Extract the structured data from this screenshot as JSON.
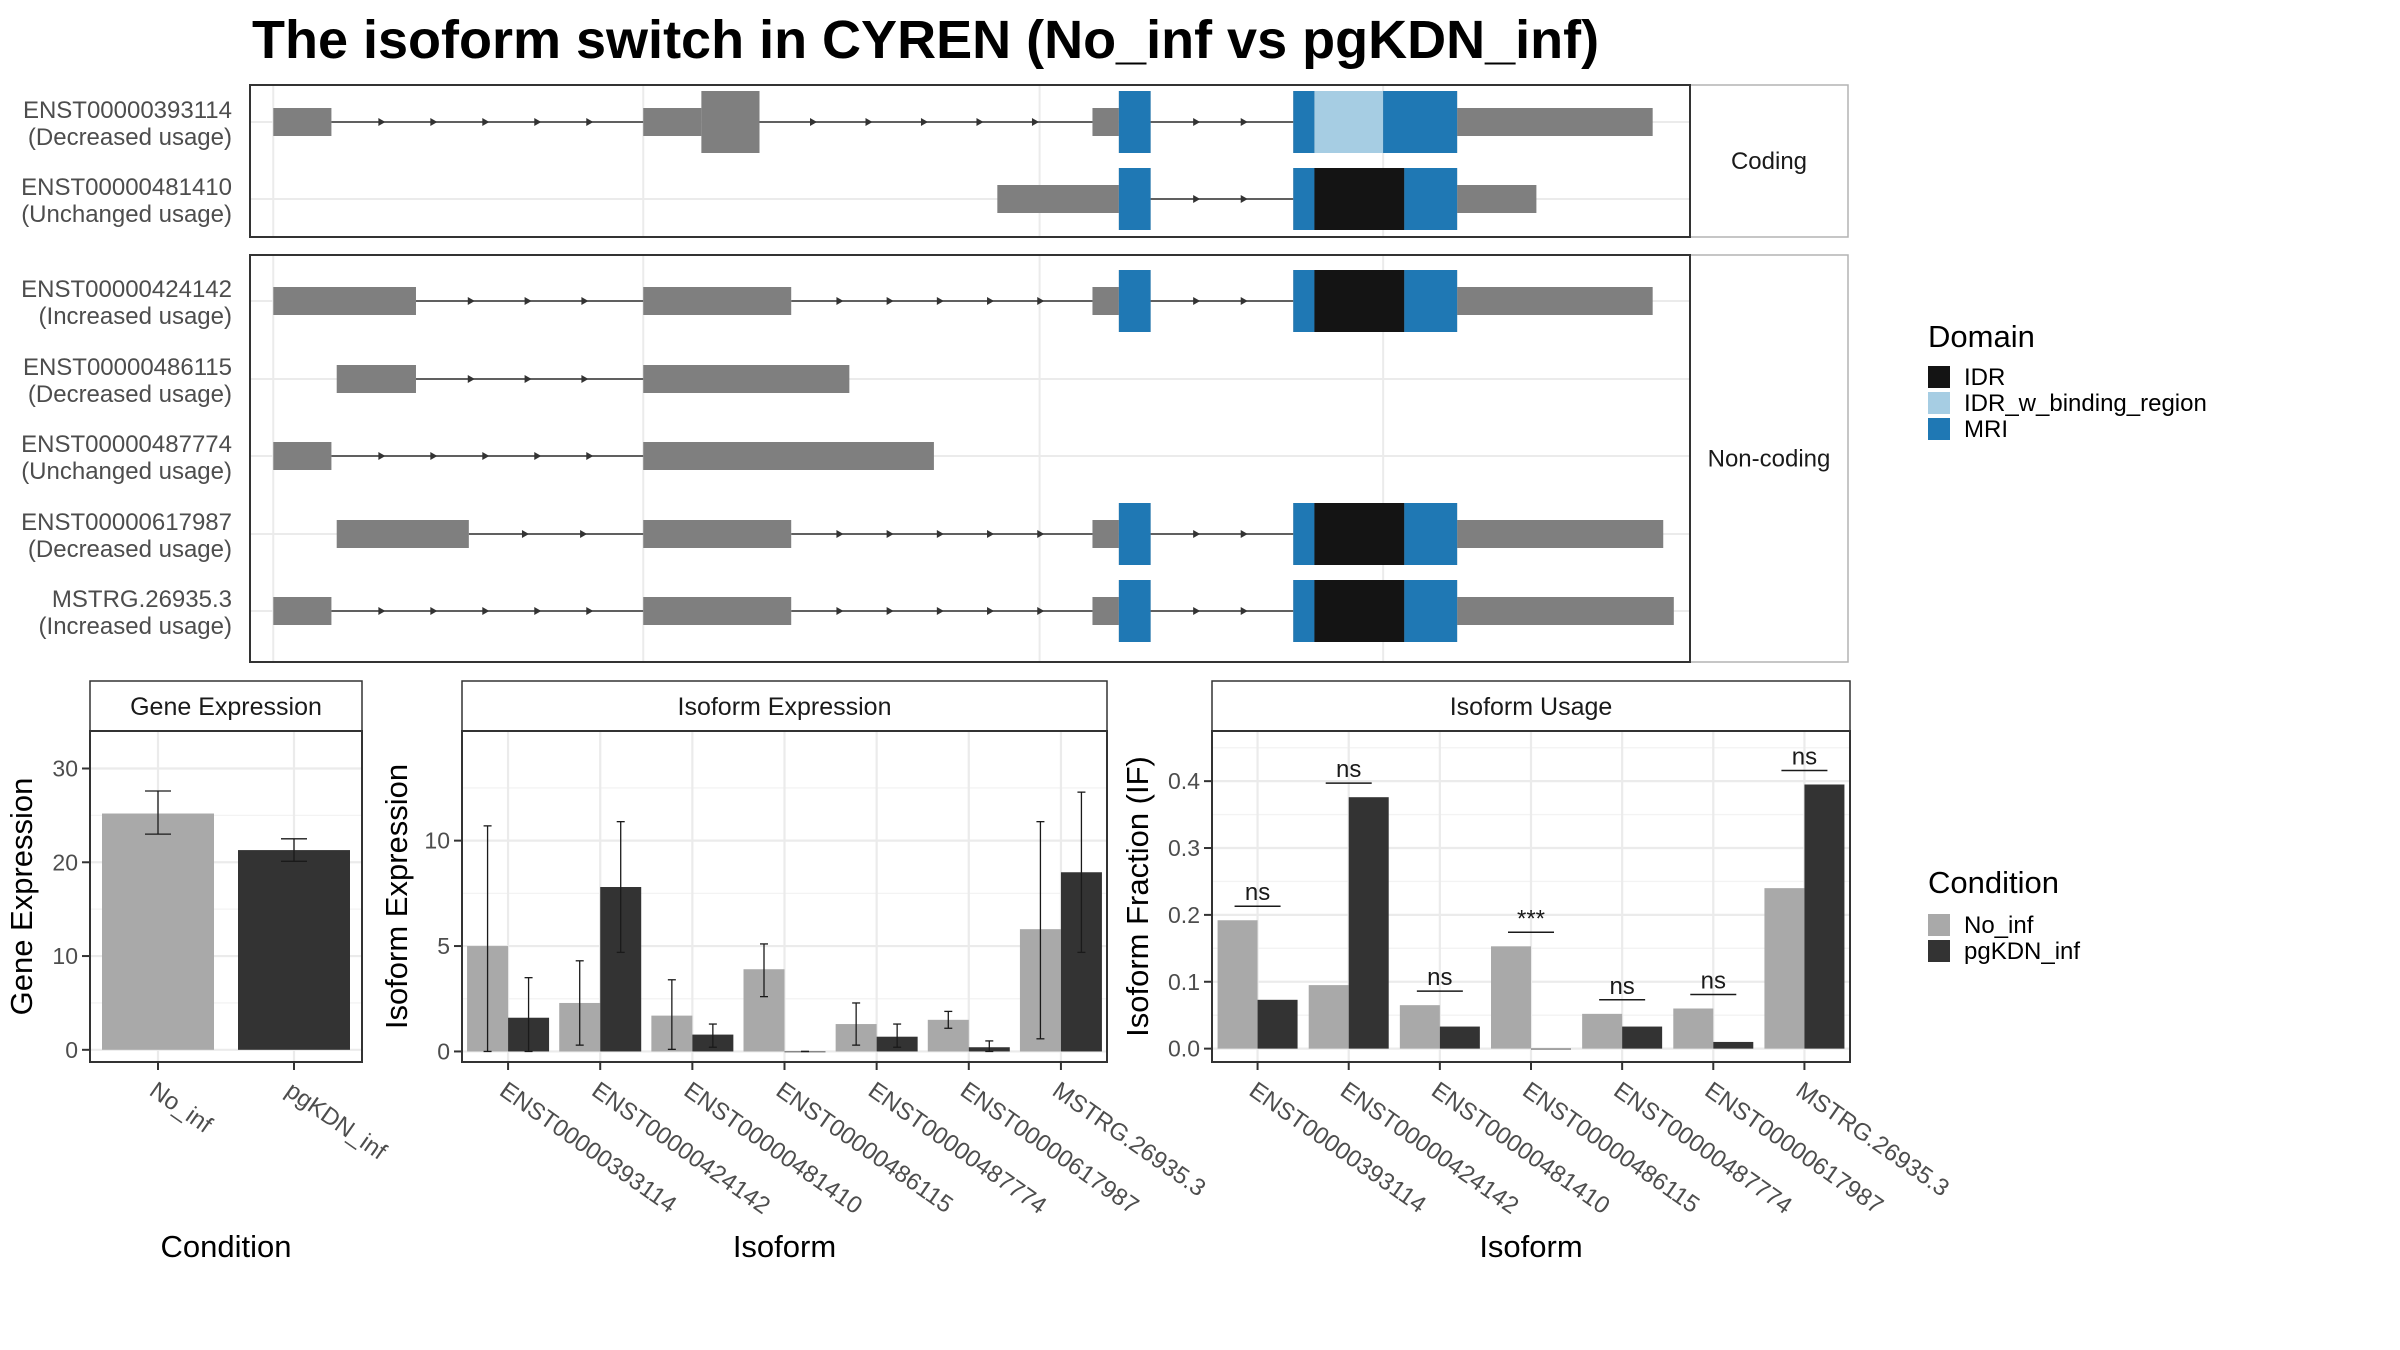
{
  "title": "The isoform switch in CYREN (No_inf vs pgKDN_inf)",
  "colors": {
    "exon": "#7f7f7f",
    "IDR": "#141414",
    "IDR_w_binding_region": "#a6cde3",
    "MRI": "#1f78b4",
    "No_inf": "#a9a9a9",
    "pgKDN_inf": "#333333"
  },
  "legend_domain": {
    "title": "Domain",
    "items": [
      {
        "key": "IDR",
        "label": "IDR"
      },
      {
        "key": "IDR_w_binding_region",
        "label": "IDR_w_binding_region"
      },
      {
        "key": "MRI",
        "label": "MRI"
      }
    ]
  },
  "legend_condition": {
    "title": "Condition",
    "items": [
      {
        "key": "No_inf",
        "label": "No_inf"
      },
      {
        "key": "pgKDN_inf",
        "label": "pgKDN_inf"
      }
    ]
  },
  "structure": {
    "x_range": [
      0,
      1000
    ],
    "groups": [
      {
        "label": "Coding",
        "isoforms": [
          {
            "id": "ENST00000393114",
            "usage": "(Decreased usage)",
            "exons": [
              [
                5,
                60
              ],
              [
                355,
                410
              ],
              [
                410,
                465
              ],
              [
                780,
                805
              ],
              [
                805,
                835
              ],
              [
                970,
                990
              ],
              [
                990,
                1055
              ],
              [
                1055,
                1110
              ],
              [
                1110,
                1125
              ],
              [
                1125,
                1310
              ]
            ],
            "thick": [
              [
                410,
                465
              ],
              [
                805,
                835
              ],
              [
                970,
                1125
              ]
            ],
            "domains": [
              {
                "s": 805,
                "e": 835,
                "d": "MRI"
              },
              {
                "s": 970,
                "e": 990,
                "d": "MRI"
              },
              {
                "s": 990,
                "e": 1055,
                "d": "IDR_w_binding_region"
              },
              {
                "s": 1055,
                "e": 1125,
                "d": "MRI"
              }
            ]
          },
          {
            "id": "ENST00000481410",
            "usage": "(Unchanged usage)",
            "exons": [
              [
                690,
                805
              ],
              [
                805,
                835
              ],
              [
                970,
                1125
              ],
              [
                1125,
                1200
              ]
            ],
            "thick": [
              [
                805,
                835
              ],
              [
                970,
                1125
              ]
            ],
            "domains": [
              {
                "s": 805,
                "e": 835,
                "d": "MRI"
              },
              {
                "s": 970,
                "e": 990,
                "d": "MRI"
              },
              {
                "s": 990,
                "e": 1075,
                "d": "IDR"
              },
              {
                "s": 1075,
                "e": 1125,
                "d": "MRI"
              }
            ]
          }
        ]
      },
      {
        "label": "Non-coding",
        "isoforms": [
          {
            "id": "ENST00000424142",
            "usage": "(Increased usage)",
            "exons": [
              [
                5,
                140
              ],
              [
                355,
                495
              ],
              [
                780,
                805
              ],
              [
                805,
                835
              ],
              [
                970,
                1125
              ],
              [
                1125,
                1310
              ]
            ],
            "thick": [
              [
                805,
                835
              ],
              [
                970,
                1125
              ]
            ],
            "domains": [
              {
                "s": 805,
                "e": 835,
                "d": "MRI"
              },
              {
                "s": 970,
                "e": 990,
                "d": "MRI"
              },
              {
                "s": 990,
                "e": 1075,
                "d": "IDR"
              },
              {
                "s": 1075,
                "e": 1125,
                "d": "MRI"
              }
            ]
          },
          {
            "id": "ENST00000486115",
            "usage": "(Decreased usage)",
            "exons": [
              [
                65,
                140
              ],
              [
                355,
                550
              ]
            ],
            "thick": [],
            "domains": []
          },
          {
            "id": "ENST00000487774",
            "usage": "(Unchanged usage)",
            "exons": [
              [
                5,
                60
              ],
              [
                355,
                630
              ]
            ],
            "thick": [],
            "domains": []
          },
          {
            "id": "ENST00000617987",
            "usage": "(Decreased usage)",
            "exons": [
              [
                65,
                190
              ],
              [
                355,
                495
              ],
              [
                780,
                805
              ],
              [
                805,
                835
              ],
              [
                970,
                1125
              ],
              [
                1125,
                1320
              ]
            ],
            "thick": [
              [
                805,
                835
              ],
              [
                970,
                1125
              ]
            ],
            "domains": [
              {
                "s": 805,
                "e": 835,
                "d": "MRI"
              },
              {
                "s": 970,
                "e": 990,
                "d": "MRI"
              },
              {
                "s": 990,
                "e": 1075,
                "d": "IDR"
              },
              {
                "s": 1075,
                "e": 1125,
                "d": "MRI"
              }
            ]
          },
          {
            "id": "MSTRG.26935.3",
            "usage": "(Increased usage)",
            "exons": [
              [
                5,
                60
              ],
              [
                355,
                495
              ],
              [
                780,
                805
              ],
              [
                805,
                835
              ],
              [
                970,
                1125
              ],
              [
                1125,
                1330
              ]
            ],
            "thick": [
              [
                805,
                835
              ],
              [
                970,
                1125
              ]
            ],
            "domains": [
              {
                "s": 805,
                "e": 835,
                "d": "MRI"
              },
              {
                "s": 970,
                "e": 990,
                "d": "MRI"
              },
              {
                "s": 990,
                "e": 1075,
                "d": "IDR"
              },
              {
                "s": 1075,
                "e": 1125,
                "d": "MRI"
              }
            ]
          }
        ]
      }
    ]
  },
  "chart_data": [
    {
      "type": "bar",
      "title": "Gene Expression",
      "xlabel": "Condition",
      "ylabel": "Gene Expression",
      "ylim": [
        -1.3,
        34
      ],
      "yticks": [
        0,
        10,
        20,
        30
      ],
      "categories": [
        "No_inf",
        "pgKDN_inf"
      ],
      "values": [
        25.2,
        21.3
      ],
      "err_low": [
        23.0,
        20.1
      ],
      "err_high": [
        27.6,
        22.5
      ]
    },
    {
      "type": "bar",
      "title": "Isoform Expression",
      "xlabel": "Isoform",
      "ylabel": "Isoform Expression",
      "ylim": [
        -0.5,
        15.2
      ],
      "yticks": [
        0,
        5,
        10
      ],
      "categories": [
        "ENST00000393114",
        "ENST00000424142",
        "ENST00000481410",
        "ENST00000486115",
        "ENST00000487774",
        "ENST00000617987",
        "MSTRG.26935.3"
      ],
      "series": [
        {
          "name": "No_inf",
          "values": [
            5.0,
            2.3,
            1.7,
            3.9,
            1.3,
            1.5,
            5.8
          ],
          "err_low": [
            0.0,
            0.3,
            0.1,
            2.6,
            0.3,
            1.1,
            0.6
          ],
          "err_high": [
            10.7,
            4.3,
            3.4,
            5.1,
            2.3,
            1.9,
            10.9
          ]
        },
        {
          "name": "pgKDN_inf",
          "values": [
            1.6,
            7.8,
            0.8,
            0.0,
            0.7,
            0.2,
            8.5
          ],
          "err_low": [
            0.0,
            4.7,
            0.2,
            0.0,
            0.2,
            0.0,
            4.7
          ],
          "err_high": [
            3.5,
            10.9,
            1.3,
            0.0,
            1.3,
            0.5,
            12.3
          ]
        }
      ]
    },
    {
      "type": "bar",
      "title": "Isoform Usage",
      "xlabel": "Isoform",
      "ylabel": "Isoform Fraction (IF)",
      "ylim": [
        -0.02,
        0.475
      ],
      "yticks": [
        "0.0",
        "0.1",
        "0.2",
        "0.3",
        "0.4"
      ],
      "categories": [
        "ENST00000393114",
        "ENST00000424142",
        "ENST00000481410",
        "ENST00000486115",
        "ENST00000487774",
        "ENST00000617987",
        "MSTRG.26935.3"
      ],
      "series": [
        {
          "name": "No_inf",
          "values": [
            0.192,
            0.095,
            0.065,
            0.153,
            0.052,
            0.06,
            0.24
          ]
        },
        {
          "name": "pgKDN_inf",
          "values": [
            0.073,
            0.376,
            0.033,
            0.0,
            0.033,
            0.01,
            0.395
          ]
        }
      ],
      "annotations": [
        {
          "label": "ns",
          "y": 0.213
        },
        {
          "label": "ns",
          "y": 0.397
        },
        {
          "label": "ns",
          "y": 0.086
        },
        {
          "label": "***",
          "y": 0.174
        },
        {
          "label": "ns",
          "y": 0.073
        },
        {
          "label": "ns",
          "y": 0.081
        },
        {
          "label": "ns",
          "y": 0.416
        }
      ]
    }
  ]
}
